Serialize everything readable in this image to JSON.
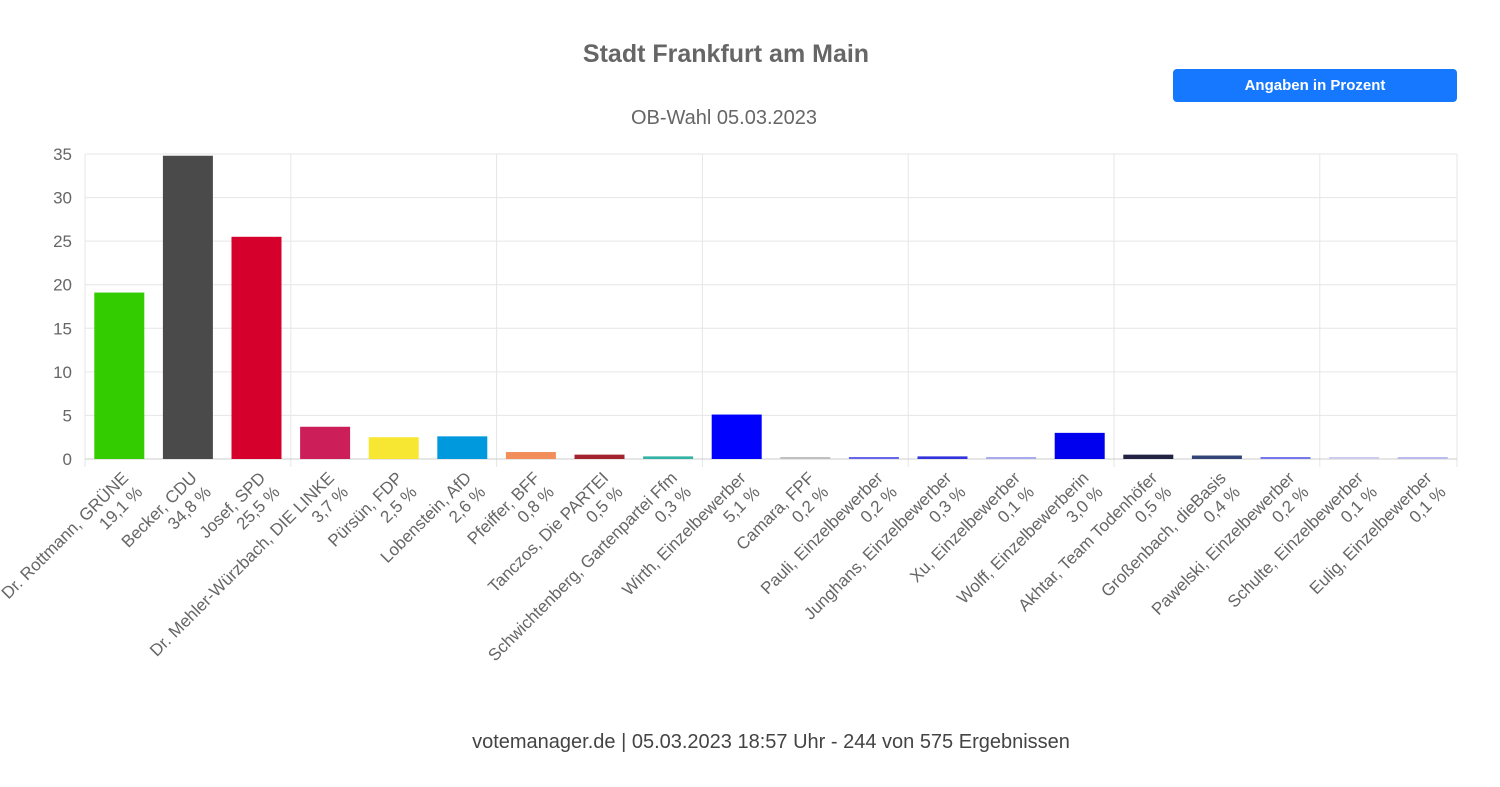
{
  "header": {
    "title": "Stadt Frankfurt am Main",
    "subtitle": "OB-Wahl 05.03.2023",
    "button_label": "Angaben in Prozent"
  },
  "footer": {
    "text": "votemanager.de | 05.03.2023 18:57 Uhr - 244 von 575 Ergebnissen"
  },
  "chart_data": {
    "type": "bar",
    "title": "Stadt Frankfurt am Main",
    "subtitle": "OB-Wahl 05.03.2023",
    "xlabel": "",
    "ylabel": "",
    "ylim": [
      0,
      35
    ],
    "yticks": [
      0,
      5,
      10,
      15,
      20,
      25,
      30,
      35
    ],
    "grid": true,
    "categories": [
      "Dr. Rottmann, GRÜNE",
      "Becker, CDU",
      "Josef, SPD",
      "Dr. Mehler-Würzbach, DIE LINKE",
      "Pürsün, FDP",
      "Lobenstein, AfD",
      "Pfeiffer, BFF",
      "Tanczos, Die PARTEI",
      "Schwichtenberg, Gartenpartei Ffm",
      "Wirth, Einzelbewerber",
      "Camara, FPF",
      "Pauli, Einzelbewerber",
      "Junghans, Einzelbewerber",
      "Xu, Einzelbewerber",
      "Wolff, Einzelbewerberin",
      "Akhtar, Team Todenhöfer",
      "Großenbach, dieBasis",
      "Pawelski, Einzelbewerber",
      "Schulte, Einzelbewerber",
      "Eulig, Einzelbewerber"
    ],
    "value_labels": [
      "19,1 %",
      "34,8 %",
      "25,5 %",
      "3,7 %",
      "2,5 %",
      "2,6 %",
      "0,8 %",
      "0,5 %",
      "0,3 %",
      "5,1 %",
      "0,2 %",
      "0,2 %",
      "0,3 %",
      "0,1 %",
      "3,0 %",
      "0,5 %",
      "0,4 %",
      "0,2 %",
      "0,1 %",
      "0,1 %"
    ],
    "values": [
      19.1,
      34.8,
      25.5,
      3.7,
      2.5,
      2.6,
      0.8,
      0.5,
      0.3,
      5.1,
      0.2,
      0.2,
      0.3,
      0.1,
      3.0,
      0.5,
      0.4,
      0.2,
      0.1,
      0.1
    ],
    "colors": [
      "#33cc00",
      "#4a4a4a",
      "#d5002b",
      "#cc1f5a",
      "#f7e632",
      "#0099dd",
      "#f28e5a",
      "#a3242c",
      "#33b3a6",
      "#0000ff",
      "#c0c0c0",
      "#6666ee",
      "#3333dd",
      "#aaaaee",
      "#0000ee",
      "#222244",
      "#334477",
      "#7777ee",
      "#ccccee",
      "#bbbbee"
    ]
  }
}
